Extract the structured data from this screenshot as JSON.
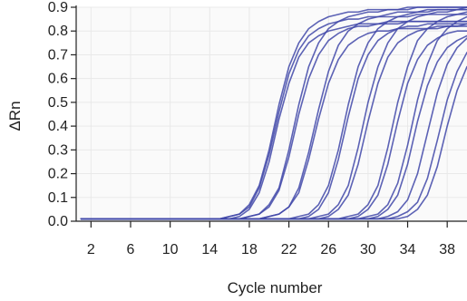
{
  "chart_data": {
    "type": "line",
    "title": "",
    "xlabel": "Cycle number",
    "ylabel": "ΔRn",
    "xlim": [
      0.5,
      40
    ],
    "ylim": [
      0,
      0.9
    ],
    "x_ticks": [
      2,
      6,
      10,
      14,
      18,
      22,
      26,
      30,
      34,
      38
    ],
    "y_ticks": [
      0.0,
      0.1,
      0.2,
      0.3,
      0.4,
      0.5,
      0.6,
      0.7,
      0.8,
      0.9
    ],
    "y_tick_labels": [
      "0.0",
      "0.1",
      "0.2",
      "0.3",
      "0.4",
      "0.5",
      "0.6",
      "0.7",
      "0.8",
      "0.9"
    ],
    "grid": true,
    "legend": "none",
    "line_color": "#3F46A8",
    "grid_color": "#E9E9E9",
    "x": [
      1,
      2,
      3,
      4,
      5,
      6,
      7,
      8,
      9,
      10,
      11,
      12,
      13,
      14,
      15,
      16,
      17,
      18,
      19,
      20,
      21,
      22,
      23,
      24,
      25,
      26,
      27,
      28,
      29,
      30,
      31,
      32,
      33,
      34,
      35,
      36,
      37,
      38,
      39,
      40
    ],
    "series": [
      {
        "values": [
          0.01,
          0.01,
          0.01,
          0.01,
          0.01,
          0.01,
          0.01,
          0.01,
          0.01,
          0.01,
          0.01,
          0.01,
          0.01,
          0.01,
          0.01,
          0.02,
          0.03,
          0.07,
          0.15,
          0.3,
          0.49,
          0.65,
          0.75,
          0.81,
          0.84,
          0.86,
          0.87,
          0.88,
          0.88,
          0.89,
          0.89,
          0.89,
          0.89,
          0.9,
          0.9,
          0.9,
          0.9,
          0.9,
          0.9,
          0.9
        ]
      },
      {
        "values": [
          0.01,
          0.01,
          0.01,
          0.01,
          0.01,
          0.01,
          0.01,
          0.01,
          0.01,
          0.01,
          0.01,
          0.01,
          0.01,
          0.01,
          0.01,
          0.02,
          0.03,
          0.06,
          0.14,
          0.28,
          0.46,
          0.62,
          0.72,
          0.78,
          0.81,
          0.83,
          0.84,
          0.85,
          0.85,
          0.86,
          0.86,
          0.86,
          0.86,
          0.86,
          0.87,
          0.87,
          0.87,
          0.87,
          0.87,
          0.87
        ]
      },
      {
        "values": [
          0.01,
          0.01,
          0.01,
          0.01,
          0.01,
          0.01,
          0.01,
          0.01,
          0.01,
          0.01,
          0.01,
          0.01,
          0.01,
          0.01,
          0.01,
          0.01,
          0.02,
          0.05,
          0.12,
          0.25,
          0.43,
          0.58,
          0.69,
          0.75,
          0.78,
          0.8,
          0.81,
          0.82,
          0.83,
          0.83,
          0.83,
          0.84,
          0.84,
          0.84,
          0.84,
          0.84,
          0.84,
          0.84,
          0.84,
          0.84
        ]
      },
      {
        "values": [
          0.01,
          0.01,
          0.01,
          0.01,
          0.01,
          0.01,
          0.01,
          0.01,
          0.01,
          0.01,
          0.01,
          0.01,
          0.01,
          0.01,
          0.01,
          0.01,
          0.01,
          0.02,
          0.03,
          0.07,
          0.14,
          0.3,
          0.49,
          0.65,
          0.75,
          0.81,
          0.84,
          0.86,
          0.87,
          0.88,
          0.88,
          0.89,
          0.89,
          0.89,
          0.9,
          0.9,
          0.9,
          0.9,
          0.9,
          0.9
        ]
      },
      {
        "values": [
          0.01,
          0.01,
          0.01,
          0.01,
          0.01,
          0.01,
          0.01,
          0.01,
          0.01,
          0.01,
          0.01,
          0.01,
          0.01,
          0.01,
          0.01,
          0.01,
          0.01,
          0.02,
          0.03,
          0.06,
          0.13,
          0.27,
          0.45,
          0.6,
          0.7,
          0.76,
          0.79,
          0.81,
          0.82,
          0.82,
          0.83,
          0.83,
          0.83,
          0.84,
          0.84,
          0.84,
          0.84,
          0.84,
          0.84,
          0.84
        ]
      },
      {
        "values": [
          0.01,
          0.01,
          0.01,
          0.01,
          0.01,
          0.01,
          0.01,
          0.01,
          0.01,
          0.01,
          0.01,
          0.01,
          0.01,
          0.01,
          0.01,
          0.01,
          0.01,
          0.01,
          0.01,
          0.02,
          0.03,
          0.06,
          0.14,
          0.29,
          0.47,
          0.63,
          0.74,
          0.8,
          0.83,
          0.85,
          0.86,
          0.87,
          0.88,
          0.88,
          0.88,
          0.89,
          0.89,
          0.89,
          0.89,
          0.89
        ]
      },
      {
        "values": [
          0.01,
          0.01,
          0.01,
          0.01,
          0.01,
          0.01,
          0.01,
          0.01,
          0.01,
          0.01,
          0.01,
          0.01,
          0.01,
          0.01,
          0.01,
          0.01,
          0.01,
          0.01,
          0.01,
          0.02,
          0.03,
          0.06,
          0.12,
          0.26,
          0.43,
          0.58,
          0.68,
          0.74,
          0.77,
          0.79,
          0.8,
          0.8,
          0.81,
          0.81,
          0.81,
          0.81,
          0.81,
          0.82,
          0.82,
          0.82
        ]
      },
      {
        "values": [
          0.01,
          0.01,
          0.01,
          0.01,
          0.01,
          0.01,
          0.01,
          0.01,
          0.01,
          0.01,
          0.01,
          0.01,
          0.01,
          0.01,
          0.01,
          0.01,
          0.01,
          0.01,
          0.01,
          0.01,
          0.01,
          0.01,
          0.02,
          0.03,
          0.07,
          0.15,
          0.3,
          0.49,
          0.65,
          0.75,
          0.81,
          0.84,
          0.86,
          0.87,
          0.88,
          0.88,
          0.89,
          0.89,
          0.89,
          0.9
        ]
      },
      {
        "values": [
          0.01,
          0.01,
          0.01,
          0.01,
          0.01,
          0.01,
          0.01,
          0.01,
          0.01,
          0.01,
          0.01,
          0.01,
          0.01,
          0.01,
          0.01,
          0.01,
          0.01,
          0.01,
          0.01,
          0.01,
          0.01,
          0.01,
          0.01,
          0.02,
          0.05,
          0.12,
          0.26,
          0.44,
          0.6,
          0.7,
          0.76,
          0.79,
          0.81,
          0.82,
          0.82,
          0.83,
          0.83,
          0.83,
          0.83,
          0.83
        ]
      },
      {
        "values": [
          0.01,
          0.01,
          0.01,
          0.01,
          0.01,
          0.01,
          0.01,
          0.01,
          0.01,
          0.01,
          0.01,
          0.01,
          0.01,
          0.01,
          0.01,
          0.01,
          0.01,
          0.01,
          0.01,
          0.01,
          0.01,
          0.01,
          0.01,
          0.01,
          0.02,
          0.03,
          0.07,
          0.15,
          0.31,
          0.5,
          0.65,
          0.75,
          0.81,
          0.84,
          0.86,
          0.87,
          0.88,
          0.88,
          0.89,
          0.89
        ]
      },
      {
        "values": [
          0.01,
          0.01,
          0.01,
          0.01,
          0.01,
          0.01,
          0.01,
          0.01,
          0.01,
          0.01,
          0.01,
          0.01,
          0.01,
          0.01,
          0.01,
          0.01,
          0.01,
          0.01,
          0.01,
          0.01,
          0.01,
          0.01,
          0.01,
          0.01,
          0.01,
          0.02,
          0.05,
          0.11,
          0.24,
          0.42,
          0.58,
          0.69,
          0.75,
          0.78,
          0.8,
          0.81,
          0.82,
          0.82,
          0.82,
          0.83
        ]
      },
      {
        "values": [
          0.01,
          0.01,
          0.01,
          0.01,
          0.01,
          0.01,
          0.01,
          0.01,
          0.01,
          0.01,
          0.01,
          0.01,
          0.01,
          0.01,
          0.01,
          0.01,
          0.01,
          0.01,
          0.01,
          0.01,
          0.01,
          0.01,
          0.01,
          0.01,
          0.01,
          0.01,
          0.01,
          0.02,
          0.03,
          0.07,
          0.15,
          0.31,
          0.5,
          0.65,
          0.76,
          0.81,
          0.84,
          0.86,
          0.87,
          0.88
        ]
      },
      {
        "values": [
          0.01,
          0.01,
          0.01,
          0.01,
          0.01,
          0.01,
          0.01,
          0.01,
          0.01,
          0.01,
          0.01,
          0.01,
          0.01,
          0.01,
          0.01,
          0.01,
          0.01,
          0.01,
          0.01,
          0.01,
          0.01,
          0.01,
          0.01,
          0.01,
          0.01,
          0.01,
          0.01,
          0.01,
          0.02,
          0.05,
          0.11,
          0.24,
          0.42,
          0.58,
          0.68,
          0.74,
          0.77,
          0.79,
          0.8,
          0.8
        ]
      },
      {
        "values": [
          0.01,
          0.01,
          0.01,
          0.01,
          0.01,
          0.01,
          0.01,
          0.01,
          0.01,
          0.01,
          0.01,
          0.01,
          0.01,
          0.01,
          0.01,
          0.01,
          0.01,
          0.01,
          0.01,
          0.01,
          0.01,
          0.01,
          0.01,
          0.01,
          0.01,
          0.01,
          0.01,
          0.01,
          0.01,
          0.02,
          0.03,
          0.07,
          0.16,
          0.32,
          0.51,
          0.66,
          0.76,
          0.81,
          0.84,
          0.86
        ]
      },
      {
        "values": [
          0.01,
          0.01,
          0.01,
          0.01,
          0.01,
          0.01,
          0.01,
          0.01,
          0.01,
          0.01,
          0.01,
          0.01,
          0.01,
          0.01,
          0.01,
          0.01,
          0.01,
          0.01,
          0.01,
          0.01,
          0.01,
          0.01,
          0.01,
          0.01,
          0.01,
          0.01,
          0.01,
          0.01,
          0.01,
          0.01,
          0.02,
          0.05,
          0.11,
          0.24,
          0.42,
          0.57,
          0.67,
          0.73,
          0.76,
          0.78
        ]
      },
      {
        "values": [
          0.01,
          0.01,
          0.01,
          0.01,
          0.01,
          0.01,
          0.01,
          0.01,
          0.01,
          0.01,
          0.01,
          0.01,
          0.01,
          0.01,
          0.01,
          0.01,
          0.01,
          0.01,
          0.01,
          0.01,
          0.01,
          0.01,
          0.01,
          0.01,
          0.01,
          0.01,
          0.01,
          0.01,
          0.01,
          0.01,
          0.01,
          0.02,
          0.04,
          0.09,
          0.2,
          0.37,
          0.54,
          0.66,
          0.73,
          0.77
        ]
      },
      {
        "values": [
          0.01,
          0.01,
          0.01,
          0.01,
          0.01,
          0.01,
          0.01,
          0.01,
          0.01,
          0.01,
          0.01,
          0.01,
          0.01,
          0.01,
          0.01,
          0.01,
          0.01,
          0.01,
          0.01,
          0.01,
          0.01,
          0.01,
          0.01,
          0.01,
          0.01,
          0.01,
          0.01,
          0.01,
          0.01,
          0.01,
          0.01,
          0.01,
          0.02,
          0.04,
          0.08,
          0.18,
          0.34,
          0.51,
          0.63,
          0.71
        ]
      },
      {
        "values": [
          0.01,
          0.01,
          0.01,
          0.01,
          0.01,
          0.01,
          0.01,
          0.01,
          0.01,
          0.01,
          0.01,
          0.01,
          0.01,
          0.01,
          0.01,
          0.01,
          0.01,
          0.01,
          0.01,
          0.01,
          0.01,
          0.01,
          0.01,
          0.01,
          0.01,
          0.01,
          0.01,
          0.01,
          0.01,
          0.01,
          0.01,
          0.01,
          0.01,
          0.02,
          0.05,
          0.11,
          0.23,
          0.4,
          0.55,
          0.65
        ]
      }
    ]
  }
}
